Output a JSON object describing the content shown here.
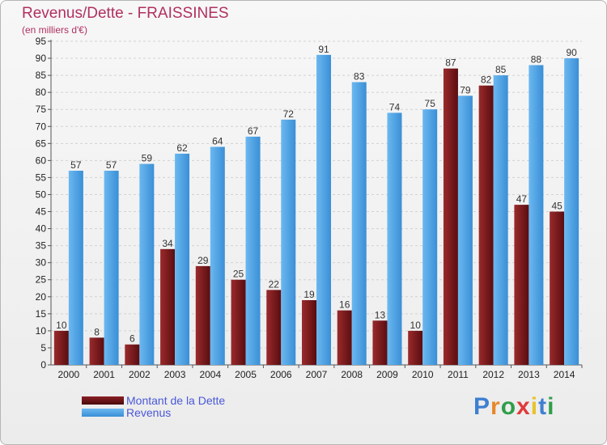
{
  "title": "Revenus/Dette - FRAISSINES",
  "subtitle": "(en milliers d'€)",
  "chart_data": {
    "type": "bar",
    "categories": [
      "2000",
      "2001",
      "2002",
      "2003",
      "2004",
      "2005",
      "2006",
      "2007",
      "2008",
      "2009",
      "2010",
      "2011",
      "2012",
      "2013",
      "2014"
    ],
    "series": [
      {
        "name": "Montant de la Dette",
        "values": [
          10,
          8,
          6,
          34,
          29,
          25,
          22,
          19,
          16,
          13,
          10,
          87,
          82,
          47,
          45
        ],
        "color": "#7a1a1e"
      },
      {
        "name": "Revenus",
        "values": [
          57,
          57,
          59,
          62,
          64,
          67,
          72,
          91,
          83,
          74,
          75,
          79,
          85,
          88,
          90
        ],
        "color": "#4aa3e6"
      }
    ],
    "ylim": [
      0,
      95
    ],
    "ytick_step": 5,
    "grid": true,
    "legend_placement": "bottom-left"
  },
  "logo": {
    "letters": [
      "P",
      "r",
      "o",
      "x",
      "i",
      "t",
      "i"
    ],
    "colors": [
      "#3e7fd1",
      "#e8882a",
      "#2f9e4a",
      "#e03a3a",
      "#e8c22a",
      "#3e7fd1",
      "#2f9e4a"
    ]
  }
}
